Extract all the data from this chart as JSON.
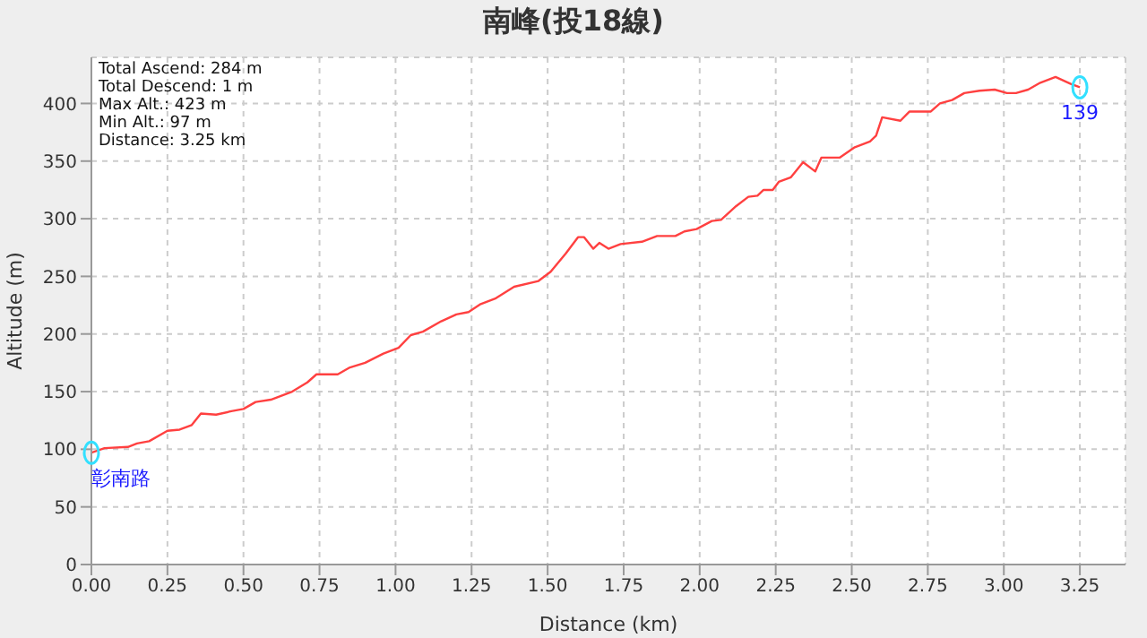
{
  "chart_data": {
    "type": "line",
    "title": "南峰(投18線)",
    "xlabel": "Distance (km)",
    "ylabel": "Altitude (m)",
    "x": [
      0,
      0.043,
      0.12,
      0.15,
      0.19,
      0.25,
      0.29,
      0.33,
      0.36,
      0.41,
      0.46,
      0.5,
      0.54,
      0.59,
      0.66,
      0.71,
      0.74,
      0.81,
      0.85,
      0.9,
      0.96,
      1.01,
      1.05,
      1.09,
      1.15,
      1.2,
      1.24,
      1.28,
      1.33,
      1.39,
      1.47,
      1.51,
      1.56,
      1.6,
      1.62,
      1.65,
      1.67,
      1.7,
      1.74,
      1.81,
      1.86,
      1.92,
      1.95,
      1.99,
      2.04,
      2.07,
      2.12,
      2.16,
      2.19,
      2.21,
      2.24,
      2.26,
      2.3,
      2.34,
      2.38,
      2.4,
      2.46,
      2.51,
      2.56,
      2.58,
      2.6,
      2.66,
      2.69,
      2.76,
      2.79,
      2.83,
      2.87,
      2.92,
      2.97,
      3.01,
      3.04,
      3.08,
      3.12,
      3.17,
      3.22,
      3.25
    ],
    "series": [
      {
        "color": "#ff4040",
        "values": [
          97,
          101,
          102,
          105,
          107,
          116,
          117,
          121,
          131,
          130,
          133,
          135,
          141,
          143,
          150,
          158,
          165,
          165,
          171,
          175,
          183,
          188,
          199,
          202,
          211,
          217,
          219,
          226,
          231,
          241,
          246,
          254,
          270,
          284,
          284,
          274,
          279,
          274,
          278,
          280,
          285,
          285,
          289,
          291,
          298,
          299,
          311,
          319,
          320,
          325,
          325,
          332,
          336,
          349,
          341,
          353,
          353,
          362,
          367,
          372,
          388,
          385,
          393,
          393,
          400,
          403,
          409,
          411,
          412,
          409,
          409,
          412,
          418,
          423,
          417,
          414
        ]
      }
    ],
    "xlim": [
      0,
      3.4
    ],
    "ylim": [
      0,
      440
    ],
    "xticks": [
      {
        "value": 0,
        "label": "0.00"
      },
      {
        "value": 0.25,
        "label": "0.25"
      },
      {
        "value": 0.5,
        "label": "0.50"
      },
      {
        "value": 0.75,
        "label": "0.75"
      },
      {
        "value": 1,
        "label": "1.00"
      },
      {
        "value": 1.25,
        "label": "1.25"
      },
      {
        "value": 1.5,
        "label": "1.50"
      },
      {
        "value": 1.75,
        "label": "1.75"
      },
      {
        "value": 2,
        "label": "2.00"
      },
      {
        "value": 2.25,
        "label": "2.25"
      },
      {
        "value": 2.5,
        "label": "2.50"
      },
      {
        "value": 2.75,
        "label": "2.75"
      },
      {
        "value": 3,
        "label": "3.00"
      },
      {
        "value": 3.25,
        "label": "3.25"
      }
    ],
    "yticks": [
      0,
      50,
      100,
      150,
      200,
      250,
      300,
      350,
      400
    ],
    "grid": true,
    "marker": "none",
    "line_style": "solid",
    "legend": false,
    "annotations": [
      "Total Ascend: 284 m",
      "Total Descend: 1 m",
      "Max Alt.: 423 m",
      "Min Alt.: 97 m",
      "Distance: 3.25 km",
      {
        "text": "彰南路",
        "x": 0,
        "y": 97
      },
      {
        "text": "139",
        "x": 3.25,
        "y": 414
      }
    ]
  }
}
